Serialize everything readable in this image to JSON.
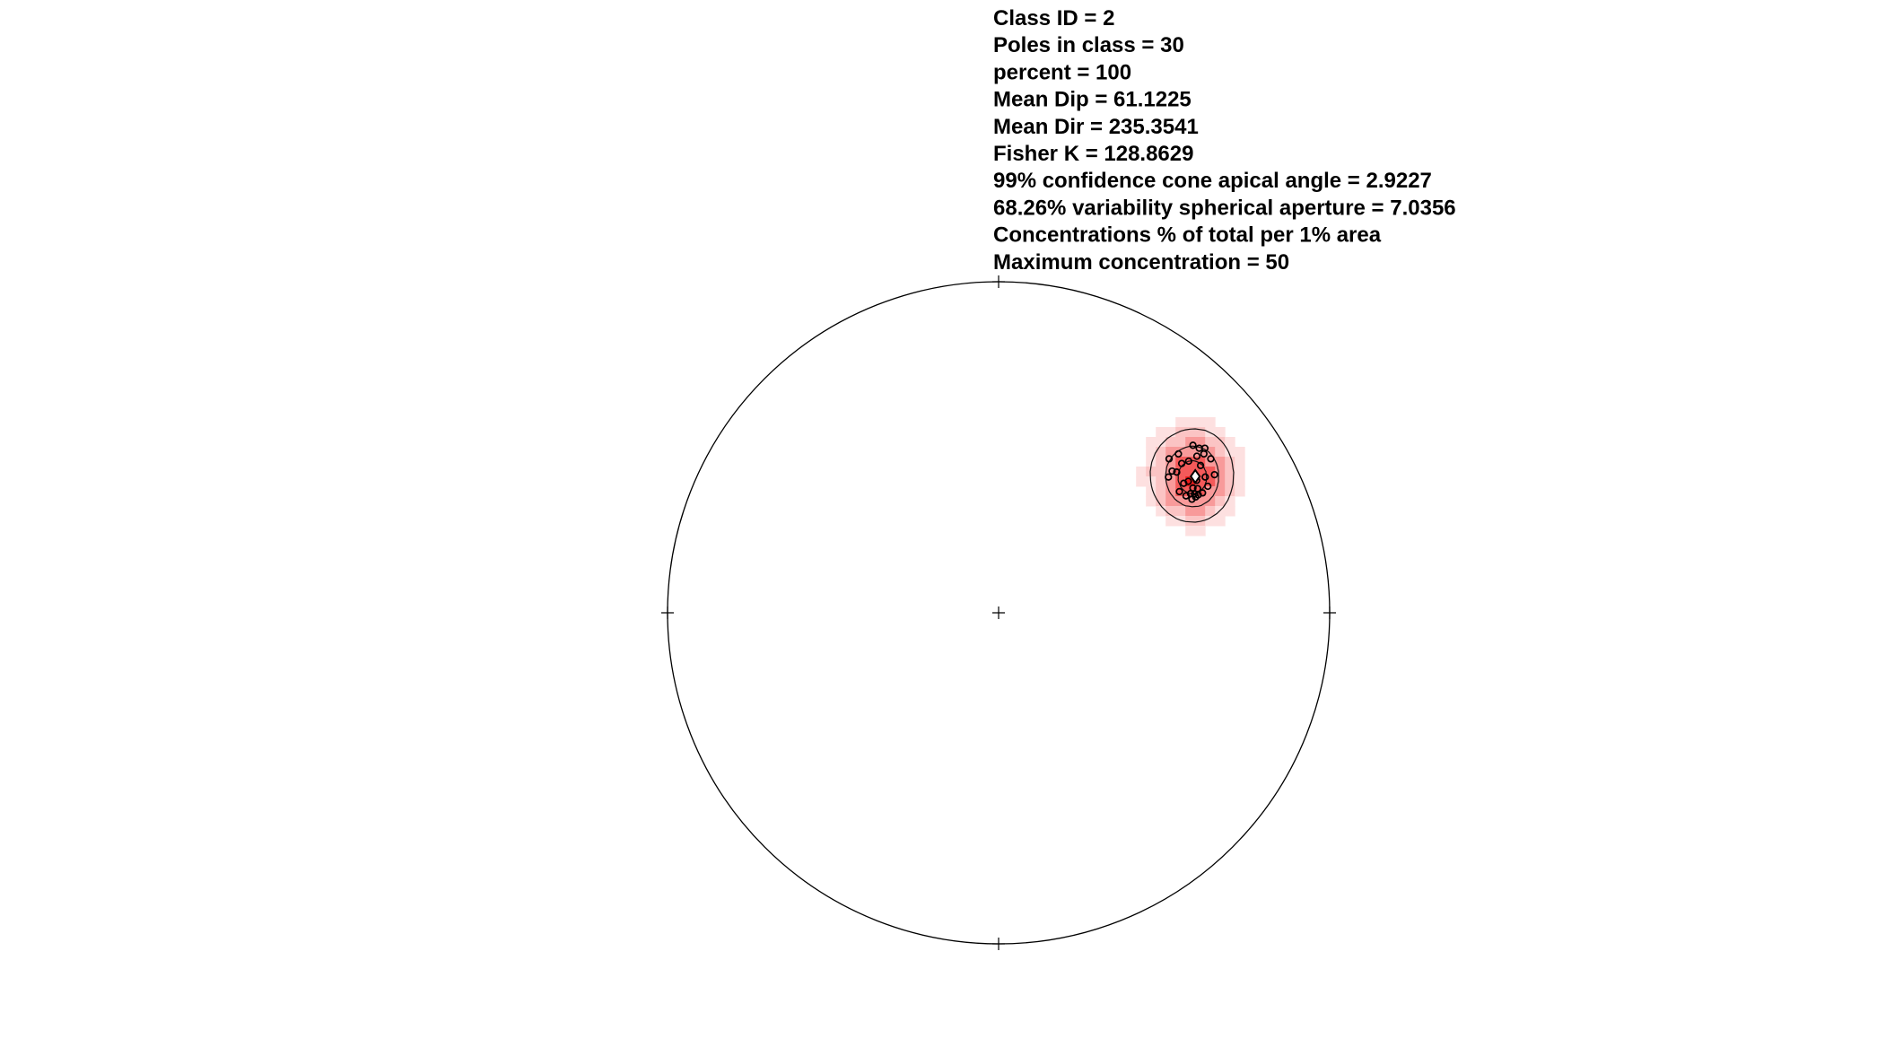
{
  "chart_data": {
    "type": "scatter",
    "projection": "stereonet pole plot with density contours",
    "stats": [
      "Class ID = 2",
      "Poles in class = 30",
      "percent = 100",
      "Mean Dip = 61.1225",
      "Mean Dir = 235.3541",
      "Fisher K = 128.8629",
      "99% confidence cone apical angle = 2.9227",
      "68.26% variability spherical aperture = 7.0356",
      "Concentrations % of total per 1% area",
      "Maximum concentration = 50"
    ],
    "mean_pole": {
      "x": 0.594,
      "y": 0.412
    },
    "poles": [
      {
        "x": 0.587,
        "y": 0.506
      },
      {
        "x": 0.623,
        "y": 0.497
      },
      {
        "x": 0.606,
        "y": 0.497
      },
      {
        "x": 0.543,
        "y": 0.48
      },
      {
        "x": 0.62,
        "y": 0.48
      },
      {
        "x": 0.515,
        "y": 0.465
      },
      {
        "x": 0.641,
        "y": 0.465
      },
      {
        "x": 0.599,
        "y": 0.473
      },
      {
        "x": 0.574,
        "y": 0.458
      },
      {
        "x": 0.553,
        "y": 0.451
      },
      {
        "x": 0.61,
        "y": 0.445
      },
      {
        "x": 0.524,
        "y": 0.428
      },
      {
        "x": 0.538,
        "y": 0.425
      },
      {
        "x": 0.652,
        "y": 0.417
      },
      {
        "x": 0.624,
        "y": 0.41
      },
      {
        "x": 0.513,
        "y": 0.41
      },
      {
        "x": 0.598,
        "y": 0.4
      },
      {
        "x": 0.573,
        "y": 0.397
      },
      {
        "x": 0.559,
        "y": 0.391
      },
      {
        "x": 0.632,
        "y": 0.382
      },
      {
        "x": 0.587,
        "y": 0.377
      },
      {
        "x": 0.601,
        "y": 0.375
      },
      {
        "x": 0.546,
        "y": 0.366
      },
      {
        "x": 0.616,
        "y": 0.362
      },
      {
        "x": 0.58,
        "y": 0.36
      },
      {
        "x": 0.592,
        "y": 0.359
      },
      {
        "x": 0.603,
        "y": 0.356
      },
      {
        "x": 0.566,
        "y": 0.353
      },
      {
        "x": 0.595,
        "y": 0.35
      },
      {
        "x": 0.584,
        "y": 0.343
      }
    ],
    "density_levels": [
      0.15,
      0.3,
      0.5,
      0.75,
      1.0
    ],
    "density_colors": [
      "#fde0e0",
      "#fbc4c4",
      "#f89a9a",
      "#f45a5a",
      "#ee1c1c",
      "#e60000"
    ],
    "contour_levels": [
      0.3,
      0.62,
      0.88
    ],
    "grid": false,
    "legend": "none"
  }
}
